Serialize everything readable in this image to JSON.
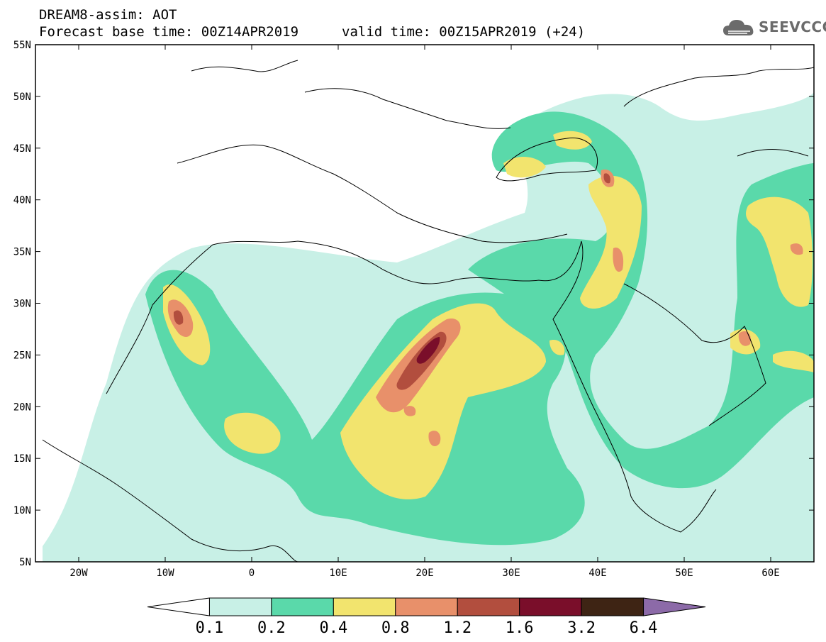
{
  "header": {
    "line1": "DREAM8-assim: AOT",
    "line2": "Forecast base time: 00Z14APR2019",
    "valid": "valid time: 00Z15APR2019 (+24)",
    "logo_text": "SEEVCCC"
  },
  "map": {
    "lon_range": [
      -25,
      65
    ],
    "lat_range": [
      5,
      55
    ],
    "lat_ticks": [
      {
        "value": 55,
        "label": "55N"
      },
      {
        "value": 50,
        "label": "50N"
      },
      {
        "value": 45,
        "label": "45N"
      },
      {
        "value": 40,
        "label": "40N"
      },
      {
        "value": 35,
        "label": "35N"
      },
      {
        "value": 30,
        "label": "30N"
      },
      {
        "value": 25,
        "label": "25N"
      },
      {
        "value": 20,
        "label": "20N"
      },
      {
        "value": 15,
        "label": "15N"
      },
      {
        "value": 10,
        "label": "10N"
      },
      {
        "value": 5,
        "label": "5N"
      }
    ],
    "lon_ticks": [
      {
        "value": -20,
        "label": "20W"
      },
      {
        "value": -10,
        "label": "10W"
      },
      {
        "value": 0,
        "label": "0"
      },
      {
        "value": 10,
        "label": "10E"
      },
      {
        "value": 20,
        "label": "20E"
      },
      {
        "value": 30,
        "label": "30E"
      },
      {
        "value": 40,
        "label": "40E"
      },
      {
        "value": 50,
        "label": "50E"
      },
      {
        "value": 60,
        "label": "60E"
      }
    ]
  },
  "colorbar": {
    "levels": [
      "0.1",
      "0.2",
      "0.4",
      "0.8",
      "1.2",
      "1.6",
      "3.2",
      "6.4"
    ],
    "colors": [
      "#ffffff",
      "#c8f0e6",
      "#5ad9aa",
      "#f2e46e",
      "#e8906a",
      "#b24e3e",
      "#7a0e2a",
      "#3e2414",
      "#8c6aa8"
    ]
  }
}
